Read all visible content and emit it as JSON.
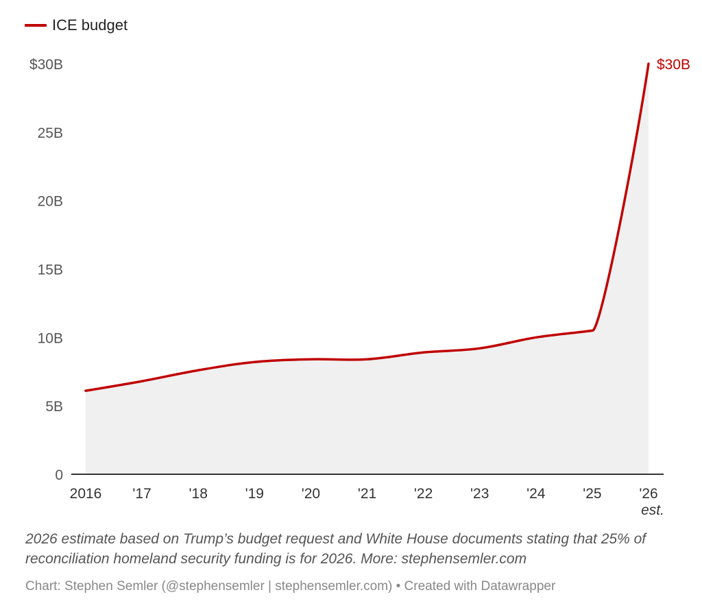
{
  "chart_data": {
    "type": "area",
    "title": "",
    "legend": [
      {
        "name": "ICE budget",
        "color": "#c00000"
      }
    ],
    "legend_placement": "top-left",
    "categories": [
      "2016",
      "'17",
      "'18",
      "'19",
      "'20",
      "'21",
      "'22",
      "'23",
      "'24",
      "'25",
      "'26"
    ],
    "category_sublabels": {
      "'26": "est."
    },
    "series": [
      {
        "name": "ICE budget",
        "color": "#c00000",
        "fill": "#f0f0f0",
        "values": [
          6.1,
          6.8,
          7.6,
          8.2,
          8.4,
          8.4,
          8.9,
          9.2,
          10.0,
          10.5,
          30.0
        ]
      }
    ],
    "unit": "billion USD",
    "ylim": [
      0,
      30
    ],
    "yticks": [
      0,
      5,
      10,
      15,
      20,
      25,
      30
    ],
    "ytick_labels": [
      "0",
      "5B",
      "10B",
      "15B",
      "20B",
      "25B",
      "$30B"
    ],
    "xlabel": "",
    "ylabel": "",
    "grid": false,
    "end_label": "$30B",
    "notes": "2026 estimate based on Trump’s budget request and White House documents stating that 25% of reconciliation homeland security funding is for 2026. More: stephensemler.com",
    "credit": "Chart: Stephen Semler (@stephensemler | stephensemler.com) • Created with Datawrapper"
  }
}
